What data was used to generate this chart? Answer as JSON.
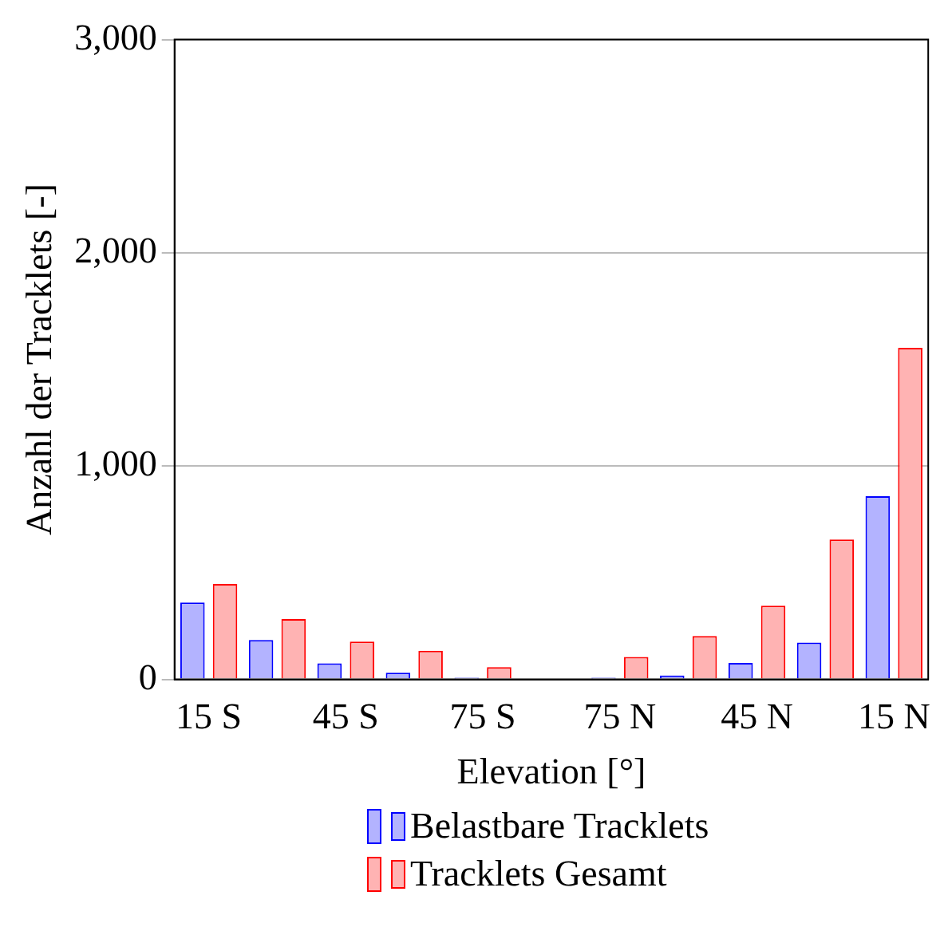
{
  "chart_data": {
    "type": "bar",
    "xlabel": "Elevation [°]",
    "ylabel": "Anzahl der Tracklets [-]",
    "categories": [
      "15 S",
      null,
      "45 S",
      null,
      "75 S",
      null,
      "75 N",
      null,
      "45 N",
      null,
      "15 N"
    ],
    "series": [
      {
        "name": "Belastbare Tracklets",
        "color": "#b3b3ff",
        "values": [
          360,
          185,
          75,
          31,
          8,
          0,
          8,
          18,
          77,
          172,
          859
        ]
      },
      {
        "name": "Tracklets Gesamt",
        "color": "#ffb3b3",
        "values": [
          447,
          283,
          177,
          134,
          57,
          0,
          105,
          203,
          345,
          656,
          1555
        ]
      }
    ],
    "ylim": [
      0,
      3000
    ],
    "yticks": [
      0,
      {
        "value": 1000,
        "label": "1,000"
      },
      {
        "value": 2000,
        "label": "2,000"
      },
      {
        "value": 3000,
        "label": "3,000"
      }
    ],
    "grid": "y",
    "legend": "bottom"
  }
}
